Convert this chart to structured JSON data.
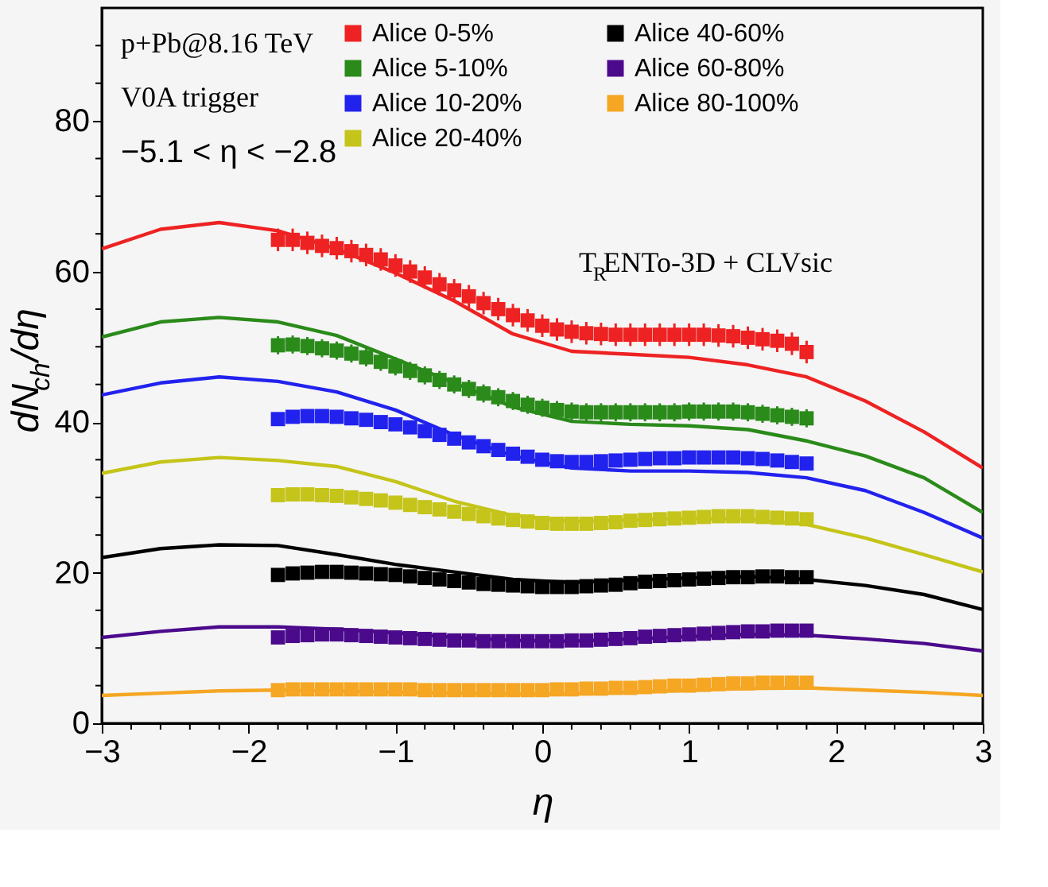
{
  "chart_data": {
    "type": "scatter",
    "xlabel": "η",
    "ylabel": "dN$_{ch}$/dη",
    "annotations": [
      "p+Pb@8.16 TeV",
      "V0A trigger",
      "−5.1 < η < −2.8",
      "T$_{R}$ENTo-3D + CLVsic"
    ],
    "x": [
      -1.8,
      -1.7,
      -1.6,
      -1.5,
      -1.4,
      -1.3,
      -1.2,
      -1.1,
      -1.0,
      -0.9,
      -0.8,
      -0.7,
      -0.6,
      -0.5,
      -0.4,
      -0.3,
      -0.2,
      -0.1,
      0,
      0.1,
      0.2,
      0.3,
      0.4,
      0.5,
      0.6,
      0.7,
      0.8,
      0.9,
      1.0,
      1.1,
      1.2,
      1.3,
      1.4,
      1.5,
      1.6,
      1.7,
      1.8
    ],
    "series": [
      {
        "name": "Alice 0-5%",
        "color": "#ee2222",
        "values": [
          64.2,
          64.2,
          63.8,
          63.4,
          63.1,
          62.7,
          62.2,
          61.6,
          60.8,
          60.0,
          59.2,
          58.3,
          57.5,
          56.7,
          55.8,
          55.0,
          54.2,
          53.5,
          52.8,
          52.3,
          52.0,
          51.8,
          51.7,
          51.6,
          51.6,
          51.6,
          51.6,
          51.6,
          51.6,
          51.6,
          51.5,
          51.4,
          51.2,
          51.0,
          50.8,
          50.4,
          49.3
        ],
        "errors": [
          1.5,
          1.5,
          1.5,
          1.5,
          1.5,
          1.5,
          1.5,
          1.5,
          1.5,
          1.5,
          1.5,
          1.5,
          1.5,
          1.5,
          1.5,
          1.5,
          1.5,
          1.5,
          1.5,
          1.5,
          1.5,
          1.5,
          1.5,
          1.5,
          1.5,
          1.5,
          1.5,
          1.5,
          1.5,
          1.5,
          1.5,
          1.5,
          1.5,
          1.5,
          1.5,
          1.5,
          1.5
        ]
      },
      {
        "name": "Alice 5-10%",
        "color": "#2a8a1a",
        "values": [
          50.2,
          50.3,
          50.1,
          49.8,
          49.5,
          49.1,
          48.6,
          48.0,
          47.4,
          46.8,
          46.2,
          45.6,
          45.0,
          44.4,
          43.8,
          43.3,
          42.8,
          42.3,
          41.9,
          41.6,
          41.4,
          41.3,
          41.3,
          41.3,
          41.3,
          41.3,
          41.3,
          41.3,
          41.4,
          41.4,
          41.4,
          41.4,
          41.3,
          41.1,
          40.9,
          40.7,
          40.5
        ],
        "errors": [
          1.2,
          1.2,
          1.2,
          1.2,
          1.2,
          1.2,
          1.2,
          1.2,
          1.2,
          1.2,
          1.2,
          1.2,
          1.2,
          1.2,
          1.2,
          1.2,
          1.2,
          1.2,
          1.2,
          1.2,
          1.2,
          1.2,
          1.2,
          1.2,
          1.2,
          1.2,
          1.2,
          1.2,
          1.2,
          1.2,
          1.2,
          1.2,
          1.2,
          1.2,
          1.2,
          1.2,
          1.2
        ]
      },
      {
        "name": "Alice 10-20%",
        "color": "#2222ee",
        "values": [
          40.4,
          40.7,
          40.8,
          40.8,
          40.7,
          40.5,
          40.3,
          40.0,
          39.7,
          39.3,
          38.8,
          38.3,
          37.8,
          37.3,
          36.8,
          36.3,
          35.8,
          35.4,
          35.0,
          34.8,
          34.7,
          34.7,
          34.8,
          34.9,
          35.0,
          35.1,
          35.2,
          35.2,
          35.3,
          35.3,
          35.3,
          35.3,
          35.2,
          35.1,
          34.9,
          34.7,
          34.5
        ]
      },
      {
        "name": "Alice 20-40%",
        "color": "#c4c41a",
        "values": [
          30.3,
          30.4,
          30.4,
          30.3,
          30.2,
          30.0,
          29.8,
          29.6,
          29.3,
          29.0,
          28.7,
          28.4,
          28.1,
          27.8,
          27.5,
          27.2,
          27.0,
          26.8,
          26.6,
          26.5,
          26.5,
          26.5,
          26.6,
          26.7,
          26.9,
          27.0,
          27.1,
          27.2,
          27.3,
          27.4,
          27.5,
          27.5,
          27.5,
          27.4,
          27.3,
          27.2,
          27.1
        ]
      },
      {
        "name": "Alice 40-60%",
        "color": "#000000",
        "values": [
          19.7,
          19.9,
          20.0,
          20.1,
          20.1,
          20.0,
          19.9,
          19.8,
          19.7,
          19.5,
          19.3,
          19.1,
          18.9,
          18.7,
          18.5,
          18.4,
          18.3,
          18.2,
          18.1,
          18.1,
          18.1,
          18.2,
          18.3,
          18.4,
          18.6,
          18.8,
          18.9,
          19.0,
          19.1,
          19.2,
          19.3,
          19.4,
          19.4,
          19.5,
          19.5,
          19.4,
          19.4
        ]
      },
      {
        "name": "Alice 60-80%",
        "color": "#4b0a8c",
        "values": [
          11.4,
          11.6,
          11.7,
          11.8,
          11.8,
          11.7,
          11.6,
          11.5,
          11.4,
          11.3,
          11.2,
          11.1,
          11.0,
          11.0,
          10.9,
          10.9,
          10.9,
          10.9,
          10.9,
          10.9,
          11.0,
          11.0,
          11.1,
          11.2,
          11.3,
          11.5,
          11.6,
          11.7,
          11.8,
          11.9,
          12.0,
          12.1,
          12.2,
          12.2,
          12.3,
          12.3,
          12.3
        ]
      },
      {
        "name": "Alice 80-100%",
        "color": "#f5a623",
        "values": [
          4.4,
          4.5,
          4.5,
          4.5,
          4.5,
          4.5,
          4.5,
          4.5,
          4.5,
          4.5,
          4.4,
          4.4,
          4.4,
          4.4,
          4.4,
          4.4,
          4.4,
          4.4,
          4.4,
          4.5,
          4.5,
          4.6,
          4.6,
          4.7,
          4.7,
          4.8,
          4.9,
          5.0,
          5.0,
          5.1,
          5.2,
          5.3,
          5.3,
          5.4,
          5.4,
          5.4,
          5.4
        ]
      },
      {
        "type": "line",
        "marker": "none",
        "color": "#ee2222",
        "x": [
          -3,
          -2.6,
          -2.2,
          -1.8,
          -1.4,
          -1.0,
          -0.6,
          -0.2,
          0.2,
          0.6,
          1.0,
          1.4,
          1.8,
          2.2,
          2.6,
          3.0
        ],
        "values": [
          63.0,
          65.6,
          66.5,
          65.4,
          63.0,
          59.8,
          56.1,
          51.7,
          49.4,
          49.0,
          48.6,
          47.6,
          46.0,
          42.8,
          38.7,
          33.9
        ]
      },
      {
        "type": "line",
        "marker": "none",
        "color": "#2a8a1a",
        "x": [
          -3,
          -2.6,
          -2.2,
          -1.8,
          -1.4,
          -1.0,
          -0.6,
          -0.2,
          0.2,
          0.6,
          1.0,
          1.4,
          1.8,
          2.2,
          2.6,
          3.0
        ],
        "values": [
          51.3,
          53.3,
          53.9,
          53.3,
          51.5,
          48.4,
          45.2,
          42.0,
          40.1,
          39.7,
          39.5,
          39.0,
          37.5,
          35.5,
          32.6,
          28.0
        ]
      },
      {
        "type": "line",
        "marker": "none",
        "color": "#2222ee",
        "x": [
          -3,
          -2.6,
          -2.2,
          -1.8,
          -1.4,
          -1.0,
          -0.6,
          -0.2,
          0.2,
          0.6,
          1.0,
          1.4,
          1.8,
          2.2,
          2.6,
          3.0
        ],
        "values": [
          43.6,
          45.2,
          46.0,
          45.4,
          44.0,
          41.6,
          38.3,
          35.5,
          33.9,
          33.5,
          33.5,
          33.3,
          32.6,
          30.9,
          28.0,
          24.6
        ]
      },
      {
        "type": "line",
        "marker": "none",
        "color": "#c4c41a",
        "x": [
          -3,
          -2.6,
          -2.2,
          -1.8,
          -1.4,
          -1.0,
          -0.6,
          -0.2,
          0.2,
          0.6,
          1.0,
          1.4,
          1.8,
          2.2,
          2.6,
          3.0
        ],
        "values": [
          33.2,
          34.7,
          35.3,
          34.9,
          34.1,
          32.1,
          29.5,
          27.6,
          26.8,
          27.0,
          27.2,
          27.1,
          26.4,
          24.6,
          22.4,
          20.1
        ]
      },
      {
        "type": "line",
        "marker": "none",
        "color": "#000000",
        "x": [
          -3,
          -2.6,
          -2.2,
          -1.8,
          -1.4,
          -1.0,
          -0.6,
          -0.2,
          0.2,
          0.6,
          1.0,
          1.4,
          1.8,
          2.2,
          2.6,
          3.0
        ],
        "values": [
          22.0,
          23.2,
          23.7,
          23.6,
          22.4,
          21.1,
          20.1,
          19.1,
          18.7,
          19.0,
          19.3,
          19.5,
          19.1,
          18.3,
          17.1,
          15.1
        ]
      },
      {
        "type": "line",
        "marker": "none",
        "color": "#4b0a8c",
        "x": [
          -3,
          -2.6,
          -2.2,
          -1.8,
          -1.4,
          -1.0,
          -0.6,
          -0.2,
          0.2,
          0.6,
          1.0,
          1.4,
          1.8,
          2.2,
          2.6,
          3.0
        ],
        "values": [
          11.4,
          12.2,
          12.8,
          12.8,
          12.5,
          12.0,
          11.4,
          11.0,
          10.9,
          11.2,
          11.5,
          11.8,
          11.7,
          11.2,
          10.6,
          9.6
        ]
      },
      {
        "type": "line",
        "marker": "none",
        "color": "#f5a623",
        "x": [
          -3,
          -2.6,
          -2.2,
          -1.8,
          -1.4,
          -1.0,
          -0.6,
          -0.2,
          0.2,
          0.6,
          1.0,
          1.4,
          1.8,
          2.2,
          2.6,
          3.0
        ],
        "values": [
          3.7,
          4.0,
          4.3,
          4.4,
          4.3,
          4.1,
          4.0,
          3.9,
          3.9,
          4.1,
          4.4,
          4.6,
          4.7,
          4.4,
          4.1,
          3.7
        ]
      }
    ],
    "xlim": [
      -3,
      3
    ],
    "ylim": [
      0,
      95
    ],
    "xticks": [
      -3,
      -2,
      -1,
      0,
      1,
      2,
      3,
      {
        "value": -2.8,
        "label": null
      },
      {
        "value": -2.6,
        "label": null
      },
      {
        "value": -2.4,
        "label": null
      },
      {
        "value": -2.2,
        "label": null
      },
      {
        "value": -1.8,
        "label": null
      },
      {
        "value": -1.6,
        "label": null
      },
      {
        "value": -1.4,
        "label": null
      },
      {
        "value": -1.2,
        "label": null
      },
      {
        "value": -0.8,
        "label": null
      },
      {
        "value": -0.6,
        "label": null
      },
      {
        "value": -0.4,
        "label": null
      },
      {
        "value": -0.2,
        "label": null
      },
      {
        "value": 0.2,
        "label": null
      },
      {
        "value": 0.4,
        "label": null
      },
      {
        "value": 0.6,
        "label": null
      },
      {
        "value": 0.8,
        "label": null
      },
      {
        "value": 1.2,
        "label": null
      },
      {
        "value": 1.4,
        "label": null
      },
      {
        "value": 1.6,
        "label": null
      },
      {
        "value": 1.8,
        "label": null
      },
      {
        "value": 2.2,
        "label": null
      },
      {
        "value": 2.4,
        "label": null
      },
      {
        "value": 2.6,
        "label": null
      },
      {
        "value": 2.8,
        "label": null
      }
    ],
    "yticks": [
      0,
      20,
      40,
      60,
      80,
      {
        "value": 5,
        "label": null
      },
      {
        "value": 10,
        "label": null
      },
      {
        "value": 15,
        "label": null
      },
      {
        "value": 25,
        "label": null
      },
      {
        "value": 30,
        "label": null
      },
      {
        "value": 35,
        "label": null
      },
      {
        "value": 45,
        "label": null
      },
      {
        "value": 50,
        "label": null
      },
      {
        "value": 55,
        "label": null
      },
      {
        "value": 65,
        "label": null
      },
      {
        "value": 70,
        "label": null
      },
      {
        "value": 75,
        "label": null
      },
      {
        "value": 85,
        "label": null
      },
      {
        "value": 90,
        "label": null
      }
    ],
    "marker": "square",
    "grid": false,
    "legend": "top"
  }
}
